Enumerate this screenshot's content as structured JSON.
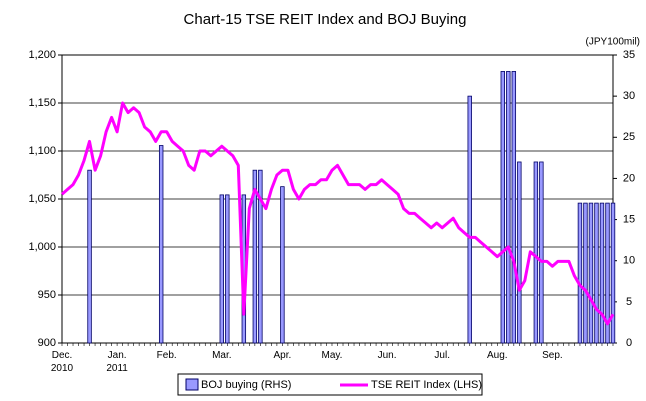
{
  "chart_data": {
    "type": "combo",
    "title": "Chart-15 TSE REIT Index and BOJ Buying",
    "y2_unit": "(JPY100mil)",
    "categories": [
      "Dec.\n2010",
      null,
      null,
      null,
      null,
      null,
      null,
      null,
      null,
      null,
      "Jan.\n2011",
      null,
      null,
      null,
      null,
      null,
      null,
      null,
      null,
      "Feb.",
      null,
      null,
      null,
      null,
      null,
      null,
      null,
      null,
      null,
      "Mar.",
      null,
      null,
      null,
      null,
      null,
      null,
      null,
      null,
      null,
      null,
      "Apr.",
      null,
      null,
      null,
      null,
      null,
      null,
      null,
      null,
      "May.",
      null,
      null,
      null,
      null,
      null,
      null,
      null,
      null,
      null,
      "Jun.",
      null,
      null,
      null,
      null,
      null,
      null,
      null,
      null,
      null,
      "Jul.",
      null,
      null,
      null,
      null,
      null,
      null,
      null,
      null,
      null,
      "Aug.",
      null,
      null,
      null,
      null,
      null,
      null,
      null,
      null,
      null,
      "Sep.",
      null,
      null,
      null,
      null,
      null,
      null,
      null,
      null,
      null,
      null,
      null
    ],
    "series": [
      {
        "name": "BOJ buying (RHS)",
        "type": "bar",
        "axis": "y2",
        "color": "#9999ff",
        "edge": "#000066",
        "values": [
          0,
          0,
          0,
          0,
          0,
          21,
          0,
          0,
          0,
          0,
          0,
          0,
          0,
          0,
          0,
          0,
          0,
          0,
          24,
          0,
          0,
          0,
          0,
          0,
          0,
          0,
          0,
          0,
          0,
          18,
          18,
          0,
          0,
          18,
          0,
          21,
          21,
          0,
          0,
          0,
          19,
          0,
          0,
          0,
          0,
          0,
          0,
          0,
          0,
          0,
          0,
          0,
          0,
          0,
          0,
          0,
          0,
          0,
          0,
          0,
          0,
          0,
          0,
          0,
          0,
          0,
          0,
          0,
          0,
          0,
          0,
          0,
          0,
          0,
          30,
          0,
          0,
          0,
          0,
          0,
          33,
          33,
          33,
          22,
          0,
          0,
          22,
          22,
          0,
          0,
          0,
          0,
          0,
          0,
          17,
          17,
          17,
          17,
          17,
          17,
          17
        ]
      },
      {
        "name": "TSE REIT Index (LHS)",
        "type": "line",
        "color": "#ff00ff",
        "values": [
          1055,
          1060,
          1065,
          1075,
          1090,
          1110,
          1080,
          1095,
          1120,
          1135,
          1120,
          1150,
          1140,
          1145,
          1140,
          1125,
          1120,
          1110,
          1120,
          1120,
          1110,
          1105,
          1100,
          1085,
          1080,
          1100,
          1100,
          1095,
          1100,
          1105,
          1100,
          1095,
          1085,
          930,
          1040,
          1060,
          1050,
          1040,
          1060,
          1075,
          1080,
          1080,
          1060,
          1050,
          1060,
          1065,
          1065,
          1070,
          1070,
          1080,
          1085,
          1075,
          1065,
          1065,
          1065,
          1060,
          1065,
          1065,
          1070,
          1065,
          1060,
          1055,
          1040,
          1035,
          1035,
          1030,
          1025,
          1020,
          1025,
          1020,
          1025,
          1030,
          1020,
          1015,
          1010,
          1010,
          1005,
          1000,
          995,
          990,
          995,
          1000,
          985,
          955,
          965,
          995,
          990,
          985,
          985,
          980,
          985,
          985,
          985,
          970,
          960,
          955,
          945,
          935,
          930,
          920,
          930
        ]
      }
    ],
    "ylim": [
      900,
      1200
    ],
    "yticks": [
      {
        "value": 900,
        "label": "900"
      },
      {
        "value": 950,
        "label": "950"
      },
      {
        "value": 1000,
        "label": "1,000"
      },
      {
        "value": 1050,
        "label": "1,050"
      },
      {
        "value": 1100,
        "label": "1,100"
      },
      {
        "value": 1150,
        "label": "1,150"
      },
      {
        "value": 1200,
        "label": "1,200"
      }
    ],
    "y2lim": [
      0,
      35
    ],
    "y2ticks": [
      0,
      5,
      10,
      15,
      20,
      25,
      30,
      35
    ],
    "grid": true,
    "legend": "bottom"
  }
}
